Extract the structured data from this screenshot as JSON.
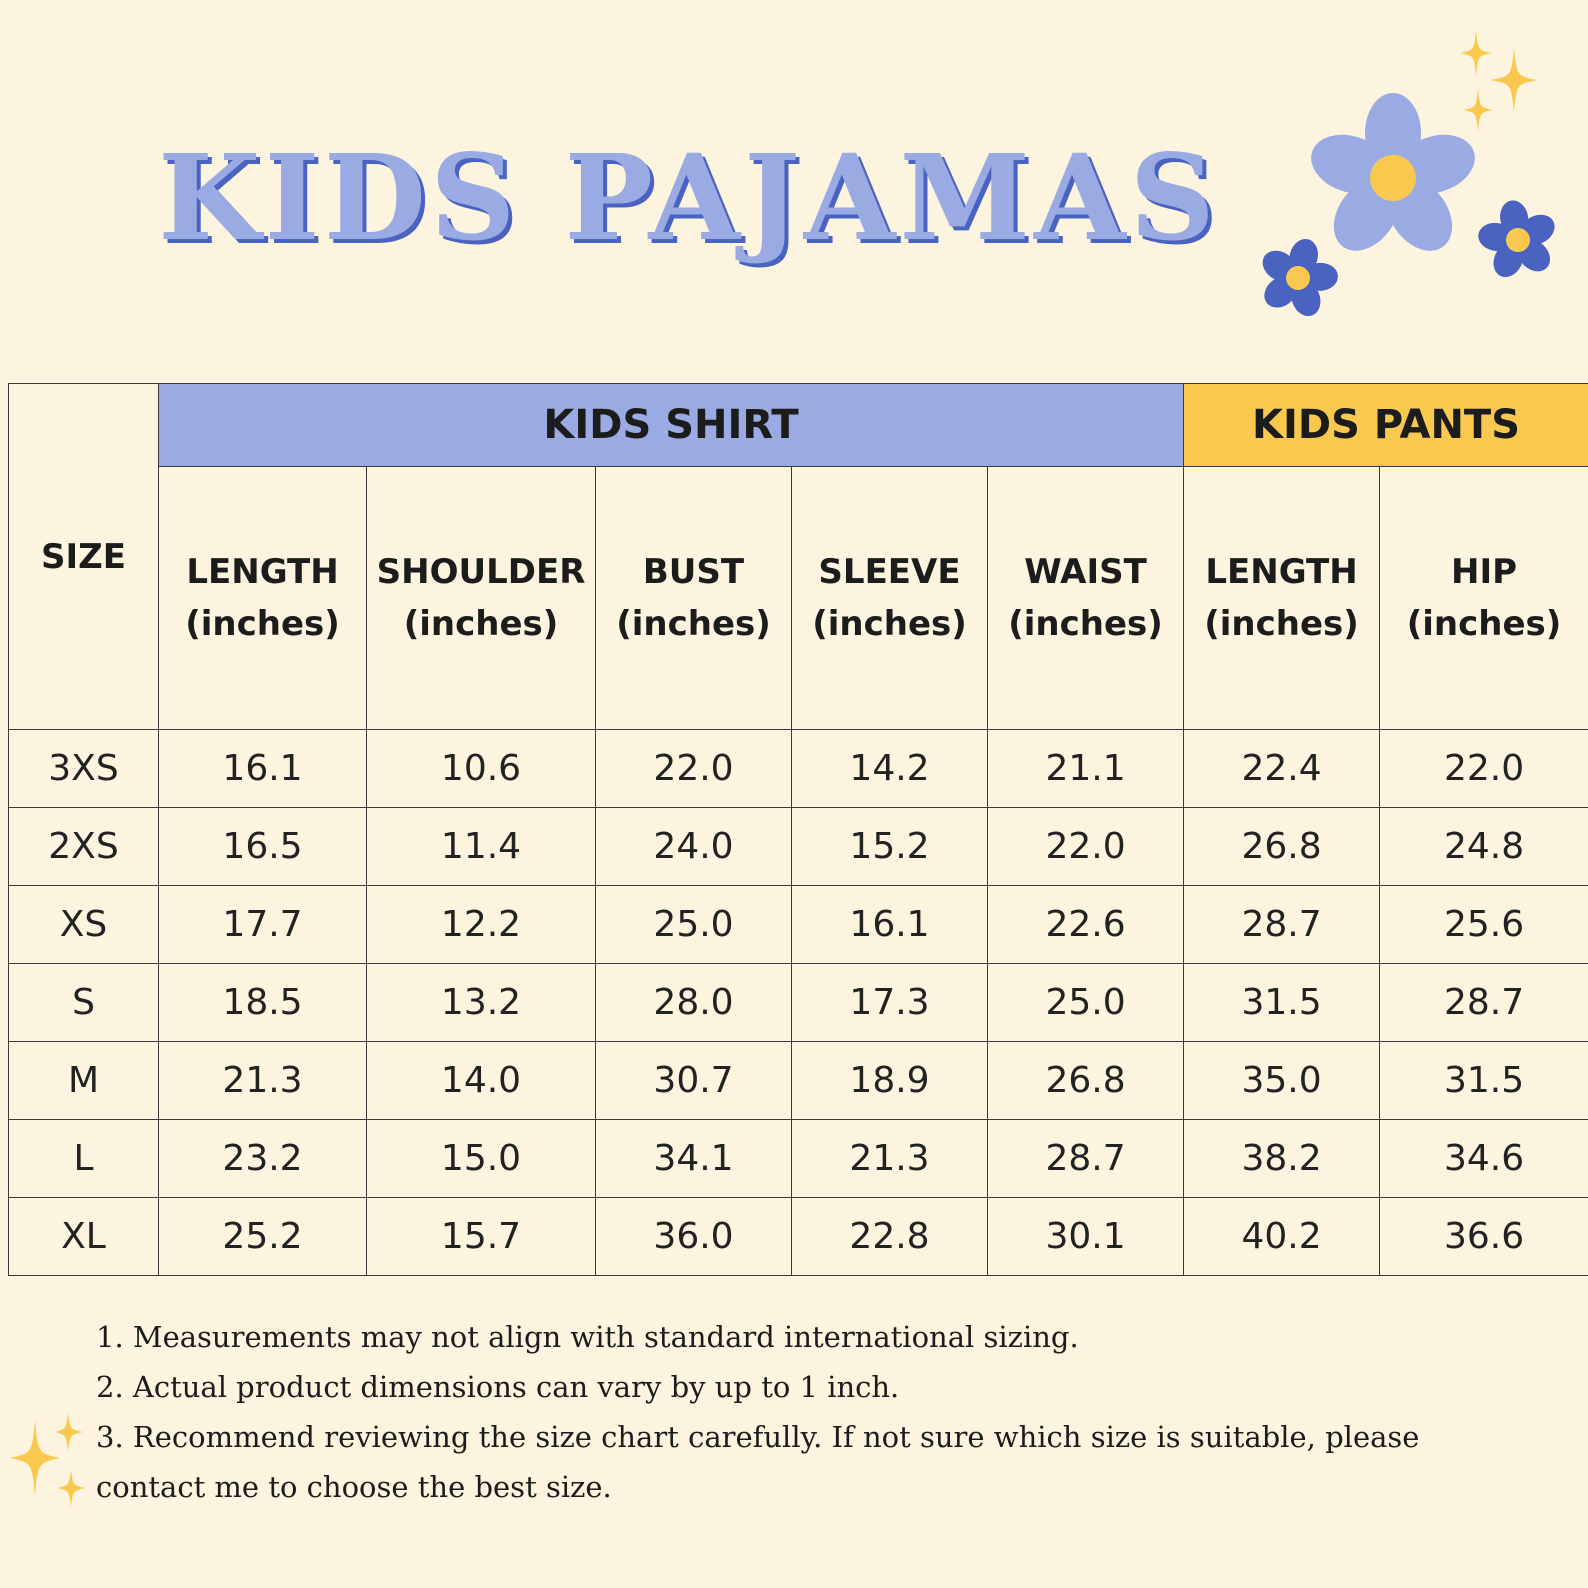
{
  "title": "KIDS PAJAMAS",
  "colors": {
    "background": "#fcf4de",
    "shirt_band": "#9aaae2",
    "pants_band": "#f8c94e",
    "title_shadow": "#4a62c0",
    "flower_dark": "#4a62c0",
    "flower_center": "#f8c94e"
  },
  "icons": [
    "sparkle-icon",
    "flower-icon"
  ],
  "table": {
    "size_header": "SIZE",
    "groups": [
      {
        "label": "KIDS SHIRT"
      },
      {
        "label": "KIDS PANTS"
      }
    ],
    "columns": [
      {
        "name": "LENGTH",
        "unit": "(inches)"
      },
      {
        "name": "SHOULDER",
        "unit": "(inches)"
      },
      {
        "name": "BUST",
        "unit": "(inches)"
      },
      {
        "name": "SLEEVE",
        "unit": "(inches)"
      },
      {
        "name": "WAIST",
        "unit": "(inches)"
      },
      {
        "name": "LENGTH",
        "unit": "(inches)"
      },
      {
        "name": "HIP",
        "unit": "(inches)"
      }
    ],
    "rows": [
      [
        "3XS",
        "16.1",
        "10.6",
        "22.0",
        "14.2",
        "21.1",
        "22.4",
        "22.0"
      ],
      [
        "2XS",
        "16.5",
        "11.4",
        "24.0",
        "15.2",
        "22.0",
        "26.8",
        "24.8"
      ],
      [
        "XS",
        "17.7",
        "12.2",
        "25.0",
        "16.1",
        "22.6",
        "28.7",
        "25.6"
      ],
      [
        "S",
        "18.5",
        "13.2",
        "28.0",
        "17.3",
        "25.0",
        "31.5",
        "28.7"
      ],
      [
        "M",
        "21.3",
        "14.0",
        "30.7",
        "18.9",
        "26.8",
        "35.0",
        "31.5"
      ],
      [
        "L",
        "23.2",
        "15.0",
        "34.1",
        "21.3",
        "28.7",
        "38.2",
        "34.6"
      ],
      [
        "XL",
        "25.2",
        "15.7",
        "36.0",
        "22.8",
        "30.1",
        "40.2",
        "36.6"
      ]
    ]
  },
  "notes": [
    "1. Measurements may not align with standard international sizing.",
    "2. Actual product dimensions can vary by up to 1 inch.",
    "3. Recommend reviewing the size chart carefully. If not sure which size is suitable, please contact me to choose the best size."
  ]
}
